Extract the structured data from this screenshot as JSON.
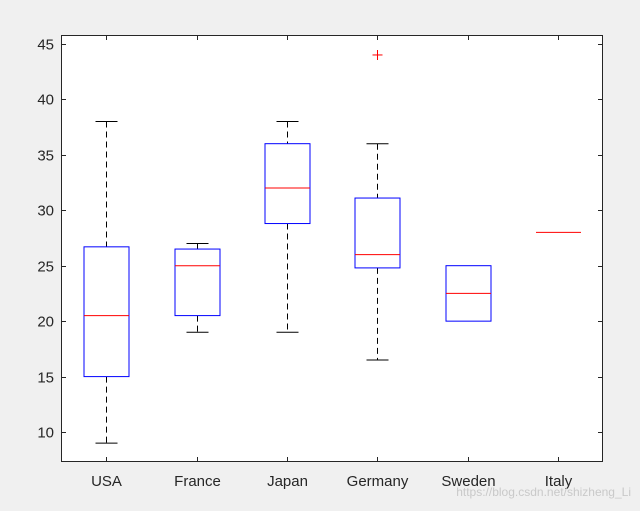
{
  "chart_data": {
    "type": "box",
    "title": "",
    "xlabel": "",
    "ylabel": "",
    "categories": [
      "USA",
      "France",
      "Japan",
      "Germany",
      "Sweden",
      "Italy"
    ],
    "boxes": [
      {
        "category": "USA",
        "whisker_low": 9,
        "q1": 15,
        "median": 20.5,
        "q3": 26.7,
        "whisker_high": 38,
        "outliers": []
      },
      {
        "category": "France",
        "whisker_low": 19,
        "q1": 20.5,
        "median": 25,
        "q3": 26.5,
        "whisker_high": 27,
        "outliers": []
      },
      {
        "category": "Japan",
        "whisker_low": 19,
        "q1": 28.8,
        "median": 32,
        "q3": 36,
        "whisker_high": 38,
        "outliers": []
      },
      {
        "category": "Germany",
        "whisker_low": 16.5,
        "q1": 24.8,
        "median": 26,
        "q3": 31.1,
        "whisker_high": 36,
        "outliers": [
          44
        ]
      },
      {
        "category": "Sweden",
        "whisker_low": 20,
        "q1": 20,
        "median": 22.5,
        "q3": 25,
        "whisker_high": 25,
        "outliers": []
      },
      {
        "category": "Italy",
        "whisker_low": 28,
        "q1": 28,
        "median": 28,
        "q3": 28,
        "whisker_high": 28,
        "outliers": []
      }
    ],
    "ylim": [
      7.3,
      45.8
    ],
    "yticks": [
      10,
      15,
      20,
      25,
      30,
      35,
      40,
      45
    ],
    "grid": false,
    "colors": {
      "box": "#0000ff",
      "median": "#ff0000",
      "whisker": "#000000",
      "outlier": "#ff0000",
      "axes": "#262626",
      "figure_background": "#f0f0f0",
      "axes_background": "#ffffff"
    }
  },
  "watermark": "https://blog.csdn.net/shizheng_Li"
}
